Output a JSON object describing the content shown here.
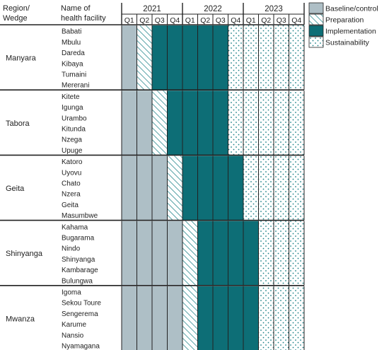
{
  "header": {
    "region_col": [
      "Region/",
      "Wedge"
    ],
    "facility_col": [
      "Name of",
      "health facility"
    ]
  },
  "years": [
    "2021",
    "2022",
    "2023"
  ],
  "quarters": [
    "Q1",
    "Q2",
    "Q3",
    "Q4",
    "Q1",
    "Q2",
    "Q3",
    "Q4",
    "Q1",
    "Q2",
    "Q3",
    "Q4"
  ],
  "phases": [
    {
      "key": "B",
      "label": "Baseline/control",
      "color": "#aebfc6"
    },
    {
      "key": "P",
      "label": "Preparation",
      "color": "#2a8a90"
    },
    {
      "key": "I",
      "label": "Implementation",
      "color": "#0d6e76"
    },
    {
      "key": "S",
      "label": "Sustainability",
      "color": "#1a7f86"
    }
  ],
  "wedges": [
    {
      "region": "Manyara",
      "facilities": [
        "Babati",
        "Mbulu",
        "Dareda",
        "Kibaya",
        "Tumaini",
        "Mererani"
      ],
      "schedule": "BPIIIIISSSSS"
    },
    {
      "region": "Tabora",
      "facilities": [
        "Kitete",
        "Igunga",
        "Urambo",
        "Kitunda",
        "Nzega",
        "Upuge"
      ],
      "schedule": "BBPIIIISSSSS"
    },
    {
      "region": "Geita",
      "facilities": [
        "Katoro",
        "Uyovu",
        "Chato",
        "Nzera",
        "Geita",
        "Masumbwe"
      ],
      "schedule": "BBBPIIIISSSS"
    },
    {
      "region": "Shinyanga",
      "facilities": [
        "Kahama",
        "Bugarama",
        "Nindo",
        "Shinyanga",
        "Kambarage",
        "Bulungwa"
      ],
      "schedule": "BBBBPIIIISSS"
    },
    {
      "region": "Mwanza",
      "facilities": [
        "Igoma",
        "Sekou Toure",
        "Sengerema",
        "Karume",
        "Nansio",
        "Nyamagana"
      ],
      "schedule": "BBBBPIIIISSS"
    }
  ]
}
